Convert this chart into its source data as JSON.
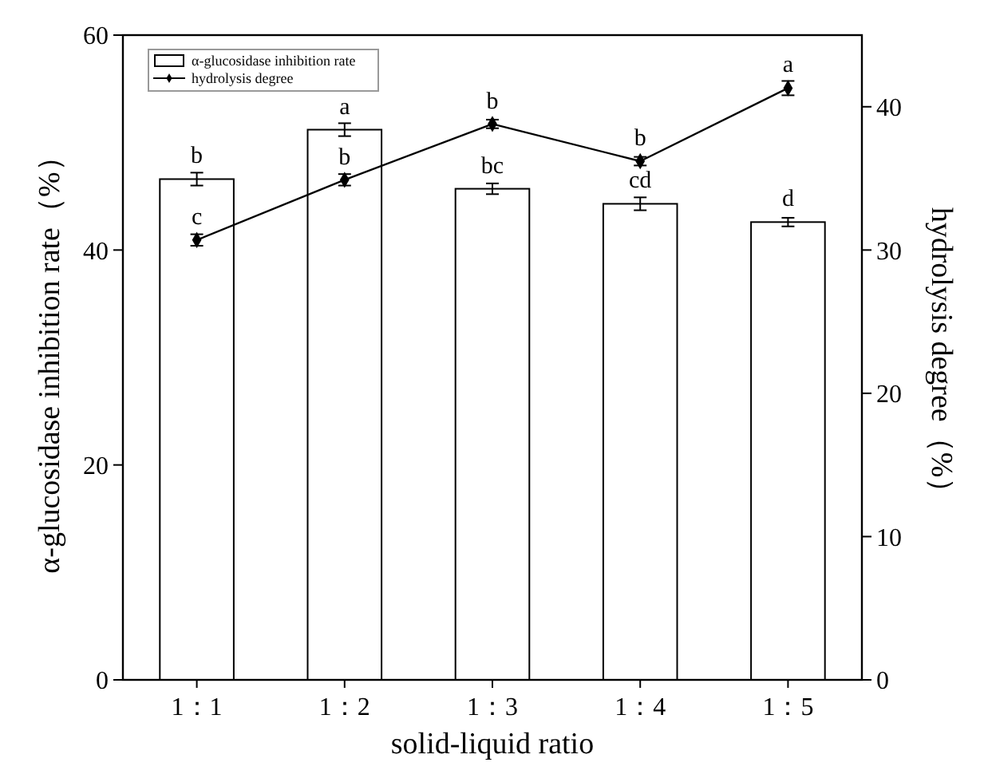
{
  "chart_data": {
    "type": "bar",
    "xlabel": "solid-liquid ratio",
    "ylabel": "α-glucosidase inhibition rate（%）",
    "y2label": "hydrolysis degree（%）",
    "categories": [
      "1：1",
      "1：2",
      "1：3",
      "1：4",
      "1：5"
    ],
    "series": [
      {
        "name": "α-glucosidase inhibition rate",
        "color": "#ffffff",
        "values": [
          46.6,
          51.2,
          45.7,
          44.3,
          42.6
        ],
        "errors": [
          0.6,
          0.6,
          0.5,
          0.6,
          0.4
        ]
      },
      {
        "name": "hydrolysis degree",
        "type": "line",
        "axis": "y2",
        "color": "#000000",
        "marker": "diamond",
        "values": [
          30.7,
          34.9,
          38.8,
          36.2,
          41.3
        ],
        "errors": [
          0.4,
          0.4,
          0.3,
          0.3,
          0.5
        ]
      }
    ],
    "ylim": [
      0,
      60
    ],
    "yticks": [
      0,
      20,
      40,
      60
    ],
    "y2lim": [
      0,
      45
    ],
    "y2ticks": [
      0,
      10,
      20,
      30,
      40
    ],
    "legend": "top left",
    "grid": false,
    "annotations": [
      {
        "text": "b",
        "x": "1：1",
        "y": 46.6
      },
      {
        "text": "a",
        "x": "1：2",
        "y": 51.2
      },
      {
        "text": "bc",
        "x": "1：3",
        "y": 45.7
      },
      {
        "text": "cd",
        "x": "1：4",
        "y": 44.3
      },
      {
        "text": "d",
        "x": "1：5",
        "y": 42.6
      },
      {
        "text": "c",
        "x": "1：1",
        "y": 40.9
      },
      {
        "text": "b",
        "x": "1：2",
        "y": 46.5
      },
      {
        "text": "b",
        "x": "1：3",
        "y": 51.7
      },
      {
        "text": "b",
        "x": "1：4",
        "y": 48.3
      },
      {
        "text": "a",
        "x": "1：5",
        "y": 55.1
      }
    ]
  }
}
